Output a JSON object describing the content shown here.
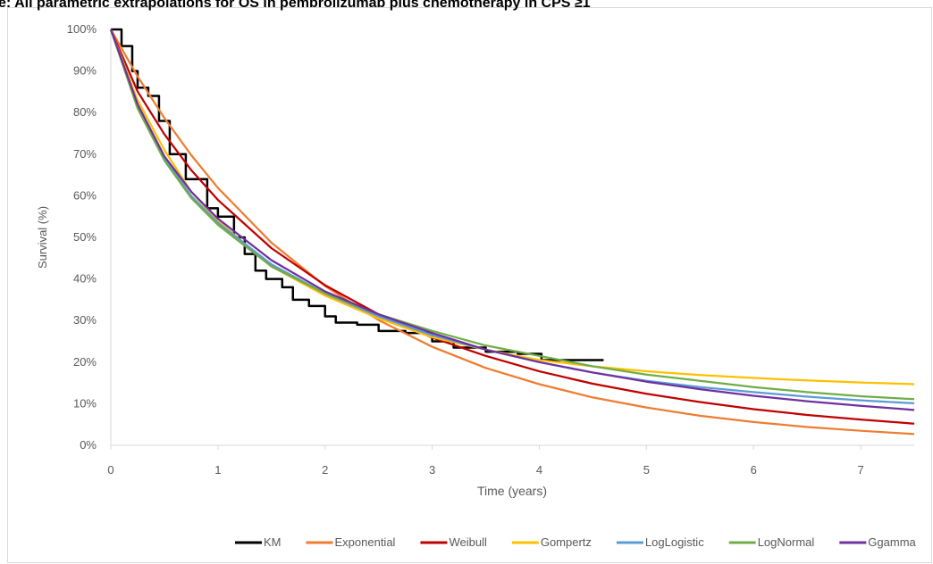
{
  "chart_data": {
    "type": "line",
    "title": "e: All parametric extrapolations for OS in pembrolizumab plus chemotherapy in CPS ≥1",
    "x_label": "Time (years)",
    "y_label": "Survival (%)",
    "xlim": [
      0,
      7.5
    ],
    "xticks": [
      0,
      1,
      2,
      3,
      4,
      5,
      6,
      7
    ],
    "ylim": [
      0,
      100
    ],
    "yticks": [
      {
        "value": 0,
        "label": "0%"
      },
      {
        "value": 10,
        "label": "10%"
      },
      {
        "value": 20,
        "label": "20%"
      },
      {
        "value": 30,
        "label": "30%"
      },
      {
        "value": 40,
        "label": "40%"
      },
      {
        "value": 50,
        "label": "50%"
      },
      {
        "value": 60,
        "label": "60%"
      },
      {
        "value": 70,
        "label": "70%"
      },
      {
        "value": 80,
        "label": "80%"
      },
      {
        "value": 90,
        "label": "90%"
      },
      {
        "value": 100,
        "label": "100%"
      }
    ],
    "legend": "bottom",
    "series": [
      {
        "name": "KM",
        "color": "#000000",
        "drawstyle": "steps",
        "x": [
          0,
          0.1,
          0.2,
          0.25,
          0.35,
          0.45,
          0.55,
          0.7,
          0.9,
          1.0,
          1.15,
          1.25,
          1.35,
          1.45,
          1.6,
          1.7,
          1.85,
          2.0,
          2.1,
          2.3,
          2.5,
          2.75,
          3.0,
          3.2,
          3.5,
          3.8,
          4.02,
          4.6
        ],
        "values": [
          100,
          96,
          90,
          86,
          84,
          78,
          70,
          64,
          57,
          55,
          50,
          46,
          42,
          40,
          38,
          35,
          33.5,
          31,
          29.5,
          29,
          27.5,
          27,
          25,
          23.5,
          22.5,
          22,
          20.5,
          20.5
        ]
      },
      {
        "name": "Exponential",
        "color": "#ed7d31",
        "x": [
          0,
          0.25,
          0.5,
          0.75,
          1,
          1.5,
          2,
          2.5,
          3,
          3.5,
          4,
          4.5,
          5,
          5.5,
          6,
          6.5,
          7,
          7.5
        ],
        "values": [
          100,
          88.7,
          78.7,
          69.8,
          61.9,
          48.7,
          38.3,
          30.1,
          23.7,
          18.6,
          14.7,
          11.5,
          9.1,
          7.1,
          5.6,
          4.4,
          3.5,
          2.7
        ]
      },
      {
        "name": "Weibull",
        "color": "#c00000",
        "x": [
          0,
          0.25,
          0.5,
          0.75,
          1,
          1.5,
          2,
          2.5,
          3,
          3.5,
          4,
          4.5,
          5,
          5.5,
          6,
          6.5,
          7,
          7.5
        ],
        "values": [
          100,
          85.1,
          74.8,
          66.2,
          59.0,
          47.4,
          38.5,
          31.5,
          25.9,
          21.5,
          17.8,
          14.8,
          12.4,
          10.4,
          8.7,
          7.3,
          6.2,
          5.2
        ]
      },
      {
        "name": "Gompertz",
        "color": "#ffc000",
        "x": [
          0,
          0.25,
          0.5,
          0.75,
          1,
          1.5,
          2,
          2.5,
          3,
          3.5,
          4,
          4.5,
          5,
          5.5,
          6,
          6.5,
          7,
          7.5
        ],
        "values": [
          100,
          83,
          71,
          61,
          54,
          43,
          36,
          30.5,
          26,
          23,
          20.5,
          19,
          17.8,
          16.9,
          16.2,
          15.6,
          15.1,
          14.7
        ]
      },
      {
        "name": "LogLogistic",
        "color": "#5b9bd5",
        "x": [
          0,
          0.25,
          0.5,
          0.75,
          1,
          1.5,
          2,
          2.5,
          3,
          3.5,
          4,
          4.5,
          5,
          5.5,
          6,
          6.5,
          7,
          7.5
        ],
        "values": [
          100,
          82,
          69,
          60,
          53.5,
          43.5,
          36.5,
          31,
          26.5,
          23,
          20,
          17.5,
          15.5,
          14,
          12.8,
          11.7,
          10.8,
          10.1
        ]
      },
      {
        "name": "LogNormal",
        "color": "#70ad47",
        "x": [
          0,
          0.25,
          0.5,
          0.75,
          1,
          1.5,
          2,
          2.5,
          3,
          3.5,
          4,
          4.5,
          5,
          5.5,
          6,
          6.5,
          7,
          7.5
        ],
        "values": [
          100,
          81,
          68.5,
          59.5,
          53,
          43,
          36.5,
          31.5,
          27.5,
          24,
          21.5,
          19,
          17,
          15.5,
          14,
          12.8,
          11.8,
          11.1
        ]
      },
      {
        "name": "Ggamma",
        "color": "#7030a0",
        "x": [
          0,
          0.25,
          0.5,
          0.75,
          1,
          1.5,
          2,
          2.5,
          3,
          3.5,
          4,
          4.5,
          5,
          5.5,
          6,
          6.5,
          7,
          7.5
        ],
        "values": [
          100,
          82,
          69.5,
          61,
          54.5,
          44.5,
          37,
          31.5,
          27,
          23,
          20,
          17.5,
          15.3,
          13.5,
          11.9,
          10.6,
          9.5,
          8.5
        ]
      }
    ]
  }
}
